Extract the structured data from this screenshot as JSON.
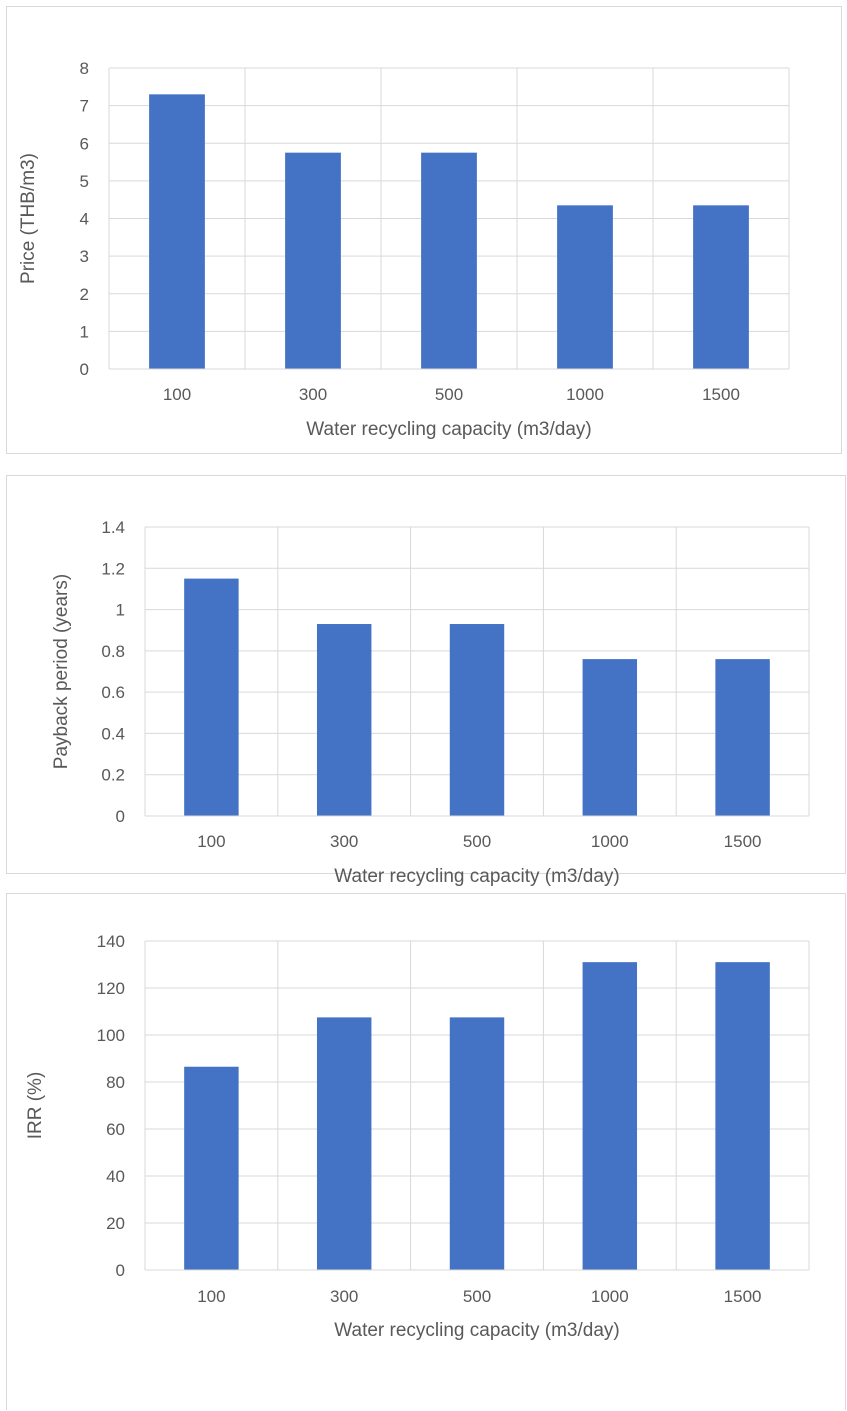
{
  "chart_data": [
    {
      "type": "bar",
      "categories": [
        "100",
        "300",
        "500",
        "1000",
        "1500"
      ],
      "values": [
        7.3,
        5.75,
        5.75,
        4.35,
        4.35
      ],
      "title": "",
      "xlabel": "Water recycling capacity (m3/day)",
      "ylabel": "Price (THB/m3)",
      "ylim": [
        0,
        8
      ],
      "yticks": [
        "0",
        "1",
        "2",
        "3",
        "4",
        "5",
        "6",
        "7",
        "8"
      ],
      "grid": true,
      "bar_color": "#4472C4"
    },
    {
      "type": "bar",
      "categories": [
        "100",
        "300",
        "500",
        "1000",
        "1500"
      ],
      "values": [
        1.15,
        0.93,
        0.93,
        0.76,
        0.76
      ],
      "title": "",
      "xlabel": "Water recycling capacity (m3/day)",
      "ylabel": "Payback period (years)",
      "ylim": [
        0,
        1.4
      ],
      "yticks": [
        "0",
        "0.2",
        "0.4",
        "0.6",
        "0.8",
        "1",
        "1.2",
        "1.4"
      ],
      "grid": true,
      "bar_color": "#4472C4"
    },
    {
      "type": "bar",
      "categories": [
        "100",
        "300",
        "500",
        "1000",
        "1500"
      ],
      "values": [
        86.5,
        107.5,
        107.5,
        131,
        131
      ],
      "title": "",
      "xlabel": "Water recycling capacity (m3/day)",
      "ylabel": "IRR (%)",
      "ylim": [
        0,
        140
      ],
      "yticks": [
        "0",
        "20",
        "40",
        "60",
        "80",
        "100",
        "120",
        "140"
      ],
      "grid": true,
      "bar_color": "#4472C4"
    }
  ]
}
